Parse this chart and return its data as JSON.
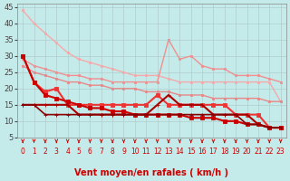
{
  "background_color": "#c5eaea",
  "grid_color": "#b0cccc",
  "xlabel": "Vent moyen/en rafales ( km/h )",
  "xlabel_color": "#cc0000",
  "xlabel_fontsize": 7,
  "xtick_color": "#cc0000",
  "ytick_color": "#444444",
  "xlim": [
    -0.5,
    23.5
  ],
  "ylim": [
    5,
    46
  ],
  "yticks": [
    5,
    10,
    15,
    20,
    25,
    30,
    35,
    40,
    45
  ],
  "xticks": [
    0,
    1,
    2,
    3,
    4,
    5,
    6,
    7,
    8,
    9,
    10,
    11,
    12,
    13,
    14,
    15,
    16,
    17,
    18,
    19,
    20,
    21,
    22,
    23
  ],
  "series": [
    {
      "x": [
        0,
        1,
        2,
        3,
        4,
        5,
        6,
        7,
        8,
        9,
        10,
        11,
        12,
        13,
        14,
        15,
        16,
        17,
        18,
        19,
        20,
        21,
        22,
        23
      ],
      "y": [
        44,
        40,
        37,
        34,
        31,
        29,
        28,
        27,
        26,
        25,
        24,
        24,
        24,
        23,
        22,
        22,
        22,
        22,
        22,
        22,
        22,
        22,
        22,
        16
      ],
      "color": "#f5aaaa",
      "linewidth": 1.0,
      "marker": "s",
      "markersize": 2.0
    },
    {
      "x": [
        0,
        1,
        2,
        3,
        4,
        5,
        6,
        7,
        8,
        9,
        10,
        11,
        12,
        13,
        14,
        15,
        16,
        17,
        18,
        19,
        20,
        21,
        22,
        23
      ],
      "y": [
        29,
        27,
        26,
        25,
        24,
        24,
        23,
        23,
        22,
        22,
        22,
        22,
        22,
        35,
        29,
        30,
        27,
        26,
        26,
        24,
        24,
        24,
        23,
        22
      ],
      "color": "#f09090",
      "linewidth": 1.0,
      "marker": "s",
      "markersize": 2.0
    },
    {
      "x": [
        0,
        1,
        2,
        3,
        4,
        5,
        6,
        7,
        8,
        9,
        10,
        11,
        12,
        13,
        14,
        15,
        16,
        17,
        18,
        19,
        20,
        21,
        22,
        23
      ],
      "y": [
        27,
        25,
        24,
        23,
        22,
        22,
        21,
        21,
        20,
        20,
        20,
        19,
        19,
        19,
        18,
        18,
        18,
        17,
        17,
        17,
        17,
        17,
        16,
        16
      ],
      "color": "#e88888",
      "linewidth": 1.0,
      "marker": "s",
      "markersize": 2.0
    },
    {
      "x": [
        0,
        1,
        2,
        3,
        4,
        5,
        6,
        7,
        8,
        9,
        10,
        11,
        12,
        13,
        14,
        15,
        16,
        17,
        18,
        19,
        20,
        21,
        22,
        23
      ],
      "y": [
        30,
        22,
        19,
        20,
        15,
        15,
        15,
        15,
        15,
        15,
        15,
        15,
        18,
        15,
        15,
        15,
        15,
        15,
        15,
        12,
        12,
        12,
        8,
        8
      ],
      "color": "#ee3333",
      "linewidth": 1.5,
      "marker": "s",
      "markersize": 2.5
    },
    {
      "x": [
        0,
        1,
        2,
        3,
        4,
        5,
        6,
        7,
        8,
        9,
        10,
        11,
        12,
        13,
        14,
        15,
        16,
        17,
        18,
        19,
        20,
        21,
        22,
        23
      ],
      "y": [
        30,
        22,
        18,
        17,
        16,
        15,
        14,
        14,
        13,
        13,
        12,
        12,
        12,
        12,
        12,
        11,
        11,
        11,
        10,
        10,
        9,
        9,
        8,
        8
      ],
      "color": "#cc0000",
      "linewidth": 1.5,
      "marker": "s",
      "markersize": 2.5
    },
    {
      "x": [
        0,
        1,
        2,
        3,
        4,
        5,
        6,
        7,
        8,
        9,
        10,
        11,
        12,
        13,
        14,
        15,
        16,
        17,
        18,
        19,
        20,
        21,
        22,
        23
      ],
      "y": [
        15,
        15,
        15,
        15,
        15,
        12,
        12,
        12,
        12,
        12,
        12,
        12,
        15,
        18,
        15,
        15,
        15,
        12,
        12,
        12,
        12,
        9,
        8,
        8
      ],
      "color": "#aa0000",
      "linewidth": 1.5,
      "marker": "+",
      "markersize": 3.5
    },
    {
      "x": [
        0,
        1,
        2,
        3,
        4,
        5,
        6,
        7,
        8,
        9,
        10,
        11,
        12,
        13,
        14,
        15,
        16,
        17,
        18,
        19,
        20,
        21,
        22,
        23
      ],
      "y": [
        15,
        15,
        12,
        12,
        12,
        12,
        12,
        12,
        12,
        12,
        12,
        12,
        12,
        12,
        12,
        12,
        12,
        12,
        12,
        12,
        9,
        9,
        8,
        8
      ],
      "color": "#880000",
      "linewidth": 1.2,
      "marker": "+",
      "markersize": 3.0
    }
  ]
}
